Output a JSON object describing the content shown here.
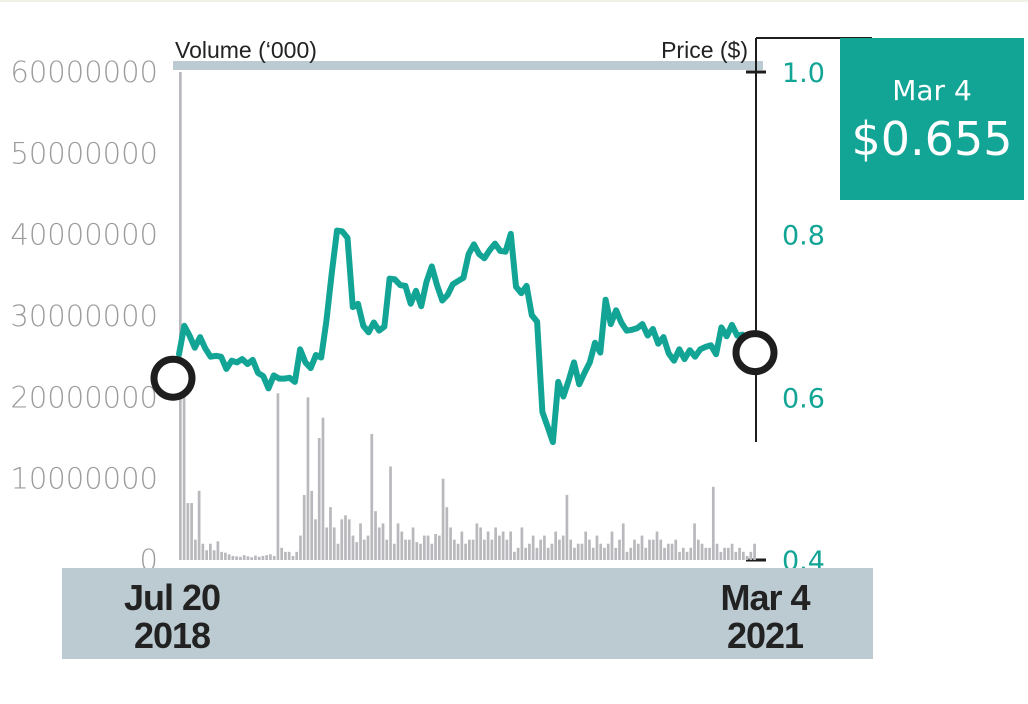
{
  "colors": {
    "price_line": "#12a596",
    "volume_bars": "#b9b9bd",
    "axis_band": "#bccbd2",
    "callout_bg": "#12a596",
    "left_ticks": "#9c9c9c",
    "dark": "#1e1e1e"
  },
  "callout": {
    "date": "Mar 4",
    "price": "$0.655"
  },
  "chart_data": {
    "type": "bar+line",
    "left_axis": {
      "title": "Volume (‘000)",
      "ticks": [
        "60000000",
        "50000000",
        "40000000",
        "30000000",
        "20000000",
        "10000000",
        "0"
      ],
      "range": [
        0,
        60000000
      ]
    },
    "right_axis": {
      "title": "Price ($)",
      "ticks": [
        "1.0",
        "0.8",
        "0.6",
        "0.4"
      ],
      "range": [
        0.4,
        1.0
      ]
    },
    "x_axis": {
      "start": [
        "Jul 20",
        "2018"
      ],
      "end": [
        "Mar 4",
        "2021"
      ]
    },
    "price_series": {
      "name": "Price ($)",
      "values": [
        0.653,
        0.688,
        0.676,
        0.661,
        0.674,
        0.66,
        0.65,
        0.651,
        0.65,
        0.635,
        0.645,
        0.643,
        0.647,
        0.641,
        0.646,
        0.63,
        0.626,
        0.611,
        0.627,
        0.623,
        0.623,
        0.624,
        0.619,
        0.659,
        0.643,
        0.636,
        0.652,
        0.649,
        0.694,
        0.752,
        0.805,
        0.804,
        0.796,
        0.711,
        0.715,
        0.688,
        0.68,
        0.692,
        0.682,
        0.687,
        0.746,
        0.745,
        0.738,
        0.737,
        0.715,
        0.731,
        0.712,
        0.742,
        0.761,
        0.738,
        0.719,
        0.726,
        0.739,
        0.743,
        0.747,
        0.776,
        0.788,
        0.776,
        0.771,
        0.781,
        0.789,
        0.78,
        0.779,
        0.801,
        0.736,
        0.728,
        0.737,
        0.701,
        0.693,
        0.582,
        0.564,
        0.545,
        0.619,
        0.601,
        0.621,
        0.643,
        0.616,
        0.63,
        0.643,
        0.667,
        0.655,
        0.72,
        0.69,
        0.707,
        0.692,
        0.682,
        0.683,
        0.685,
        0.69,
        0.676,
        0.684,
        0.666,
        0.674,
        0.654,
        0.645,
        0.659,
        0.647,
        0.658,
        0.65,
        0.659,
        0.662,
        0.664,
        0.653,
        0.686,
        0.675,
        0.689,
        0.676,
        0.677,
        0.662,
        0.655
      ]
    },
    "volume_series": {
      "name": "Volume (‘000)",
      "values": [
        60000000,
        21000000,
        7000000,
        7000000,
        2500000,
        8500000,
        2000000,
        1200000,
        2000000,
        1200000,
        2300000,
        1000000,
        900000,
        700000,
        500000,
        450000,
        400000,
        600000,
        450000,
        350000,
        550000,
        400000,
        500000,
        600000,
        700000,
        500000,
        20500000,
        1500000,
        1000000,
        1000000,
        500000,
        1000000,
        3000000,
        8000000,
        20000000,
        8500000,
        5000000,
        15000000,
        17500000,
        4000000,
        6500000,
        4000000,
        2000000,
        5000000,
        5500000,
        5000000,
        3000000,
        2200000,
        4500000,
        2500000,
        3000000,
        15500000,
        6000000,
        4000000,
        4500000,
        2500000,
        11500000,
        2000000,
        4500000,
        3500000,
        2500000,
        2500000,
        4000000,
        2200000,
        2000000,
        3000000,
        3000000,
        2000000,
        3200000,
        3000000,
        10000000,
        6500000,
        4000000,
        2500000,
        2000000,
        3500000,
        2000000,
        2500000,
        2500000,
        4500000,
        4000000,
        2500000,
        3500000,
        2500000,
        4000000,
        3000000,
        3500000,
        2500000,
        3500000,
        1000000,
        1500000,
        4000000,
        1500000,
        2000000,
        3000000,
        1500000,
        2500000,
        3000000,
        1500000,
        2000000,
        3500000,
        2500000,
        3000000,
        8000000,
        2500000,
        1500000,
        2000000,
        2000000,
        3500000,
        2500000,
        1500000,
        3000000,
        2000000,
        1500000,
        2000000,
        3500000,
        1500000,
        2500000,
        4500000,
        1000000,
        1500000,
        2500000,
        2000000,
        3000000,
        1500000,
        2500000,
        2500000,
        3500000,
        2500000,
        1500000,
        2000000,
        2000000,
        2500000,
        1000000,
        1500000,
        1000000,
        1500000,
        4500000,
        2500000,
        2000000,
        1500000,
        1500000,
        9000000,
        2000000,
        1000000,
        1500000,
        1500000,
        2000000,
        1000000,
        1500000,
        1000000,
        500000,
        1000000,
        2000000
      ]
    },
    "highlighted_points": [
      "start",
      "end"
    ],
    "legend": "none",
    "grid": false
  }
}
